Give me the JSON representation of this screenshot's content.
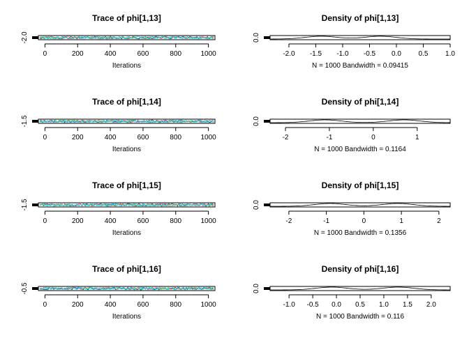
{
  "chart_data": [
    {
      "type": "line",
      "title": "Trace of phi[1,13]",
      "xlabel": "Iterations",
      "x_ticks": [
        "0",
        "200",
        "400",
        "600",
        "800",
        "1000"
      ],
      "x_tick_values": [
        0,
        200,
        400,
        600,
        800,
        1000
      ],
      "xlim": [
        -40,
        1040
      ],
      "y_ticks": [
        "-2.0"
      ],
      "ylim": [
        -2.05,
        -1.95
      ],
      "series_colors": [
        "#000000",
        "#DF536B",
        "#61D04F",
        "#2297E6",
        "#28E2E5"
      ],
      "grid": false
    },
    {
      "type": "line",
      "title": "Density of phi[1,13]",
      "xlabel": "N = 1000   Bandwidth = 0.09415",
      "x_ticks": [
        "-2.0",
        "-1.5",
        "-1.0",
        "-0.5",
        "0.0",
        "0.5",
        "1.0"
      ],
      "x_tick_values": [
        -2.0,
        -1.5,
        -1.0,
        -0.5,
        0.0,
        0.5,
        1.0
      ],
      "xlim": [
        -2.35,
        1.0
      ],
      "y_ticks": [
        "0.0"
      ],
      "peaks": [
        -1.4,
        -0.3
      ],
      "grid": false
    },
    {
      "type": "line",
      "title": "Trace of phi[1,14]",
      "xlabel": "Iterations",
      "x_ticks": [
        "0",
        "200",
        "400",
        "600",
        "800",
        "1000"
      ],
      "x_tick_values": [
        0,
        200,
        400,
        600,
        800,
        1000
      ],
      "xlim": [
        -40,
        1040
      ],
      "y_ticks": [
        "-1.5"
      ],
      "ylim": [
        -1.55,
        -1.45
      ],
      "series_colors": [
        "#000000",
        "#DF536B",
        "#61D04F",
        "#2297E6",
        "#28E2E5"
      ],
      "grid": false
    },
    {
      "type": "line",
      "title": "Density of phi[1,14]",
      "xlabel": "N = 1000   Bandwidth = 0.1164",
      "x_ticks": [
        "-2",
        "-1",
        "0",
        "1"
      ],
      "x_tick_values": [
        -2,
        -1,
        0,
        1
      ],
      "xlim": [
        -2.35,
        1.75
      ],
      "y_ticks": [
        "0.0"
      ],
      "peaks": [
        -1.1,
        0.7
      ],
      "grid": false
    },
    {
      "type": "line",
      "title": "Trace of phi[1,15]",
      "xlabel": "Iterations",
      "x_ticks": [
        "0",
        "200",
        "400",
        "600",
        "800",
        "1000"
      ],
      "x_tick_values": [
        0,
        200,
        400,
        600,
        800,
        1000
      ],
      "xlim": [
        -40,
        1040
      ],
      "y_ticks": [
        "-1.5"
      ],
      "ylim": [
        -1.55,
        -1.45
      ],
      "series_colors": [
        "#000000",
        "#DF536B",
        "#61D04F",
        "#2297E6",
        "#28E2E5"
      ],
      "grid": false
    },
    {
      "type": "line",
      "title": "Density of phi[1,15]",
      "xlabel": "N = 1000   Bandwidth = 0.1356",
      "x_ticks": [
        "-2",
        "-1",
        "0",
        "1",
        "2"
      ],
      "x_tick_values": [
        -2,
        -1,
        0,
        1,
        2
      ],
      "xlim": [
        -2.5,
        2.3
      ],
      "y_ticks": [
        "0.0"
      ],
      "peaks": [
        -0.9,
        0.9
      ],
      "grid": false
    },
    {
      "type": "line",
      "title": "Trace of phi[1,16]",
      "xlabel": "Iterations",
      "x_ticks": [
        "0",
        "200",
        "400",
        "600",
        "800",
        "1000"
      ],
      "x_tick_values": [
        0,
        200,
        400,
        600,
        800,
        1000
      ],
      "xlim": [
        -40,
        1040
      ],
      "y_ticks": [
        "-0.5"
      ],
      "ylim": [
        -0.55,
        -0.45
      ],
      "series_colors": [
        "#000000",
        "#DF536B",
        "#61D04F",
        "#2297E6",
        "#28E2E5"
      ],
      "grid": false
    },
    {
      "type": "line",
      "title": "Density of phi[1,16]",
      "xlabel": "N = 1000   Bandwidth = 0.116",
      "x_ticks": [
        "-1.0",
        "-0.5",
        "0.0",
        "0.5",
        "1.0",
        "1.5",
        "2.0"
      ],
      "x_tick_values": [
        -1.0,
        -0.5,
        0.0,
        0.5,
        1.0,
        1.5,
        2.0
      ],
      "xlim": [
        -1.4,
        2.4
      ],
      "y_ticks": [
        "0.0"
      ],
      "peaks": [
        -0.1,
        1.3
      ],
      "grid": false
    }
  ]
}
